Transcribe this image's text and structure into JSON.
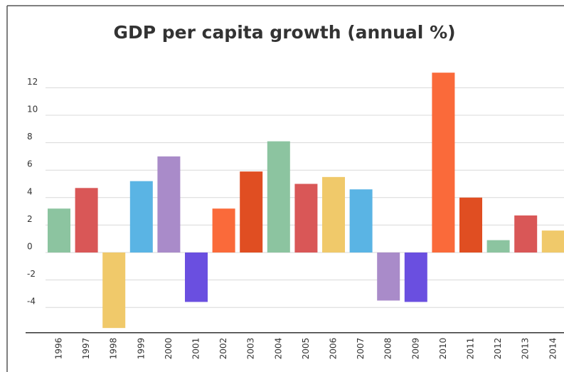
{
  "chart_data": {
    "type": "bar",
    "title": "GDP per capita growth (annual %)",
    "categories": [
      "1996",
      "1997",
      "1998",
      "1999",
      "2000",
      "2001",
      "2002",
      "2003",
      "2004",
      "2005",
      "2006",
      "2007",
      "2008",
      "2009",
      "2010",
      "2011",
      "2012",
      "2013",
      "2014"
    ],
    "values": [
      3.2,
      4.7,
      -5.5,
      5.2,
      7.0,
      -3.6,
      3.2,
      5.9,
      8.1,
      5.0,
      5.5,
      4.6,
      -3.5,
      -3.6,
      13.1,
      4.0,
      0.9,
      2.7,
      1.6
    ],
    "colors": [
      "#8cc4a0",
      "#d95757",
      "#f0c96a",
      "#5ab4e4",
      "#a98bc9",
      "#6a4fe0",
      "#fa6a3a",
      "#e04e22",
      "#8cc4a0",
      "#d95757",
      "#f0c96a",
      "#5ab4e4",
      "#a98bc9",
      "#6a4fe0",
      "#fa6a3a",
      "#e04e22",
      "#8cc4a0",
      "#d95757",
      "#f0c96a"
    ],
    "ylim": [
      -6,
      14
    ],
    "yticks": [
      -4,
      -2,
      0,
      2,
      4,
      6,
      8,
      10,
      12
    ],
    "grid": true
  }
}
